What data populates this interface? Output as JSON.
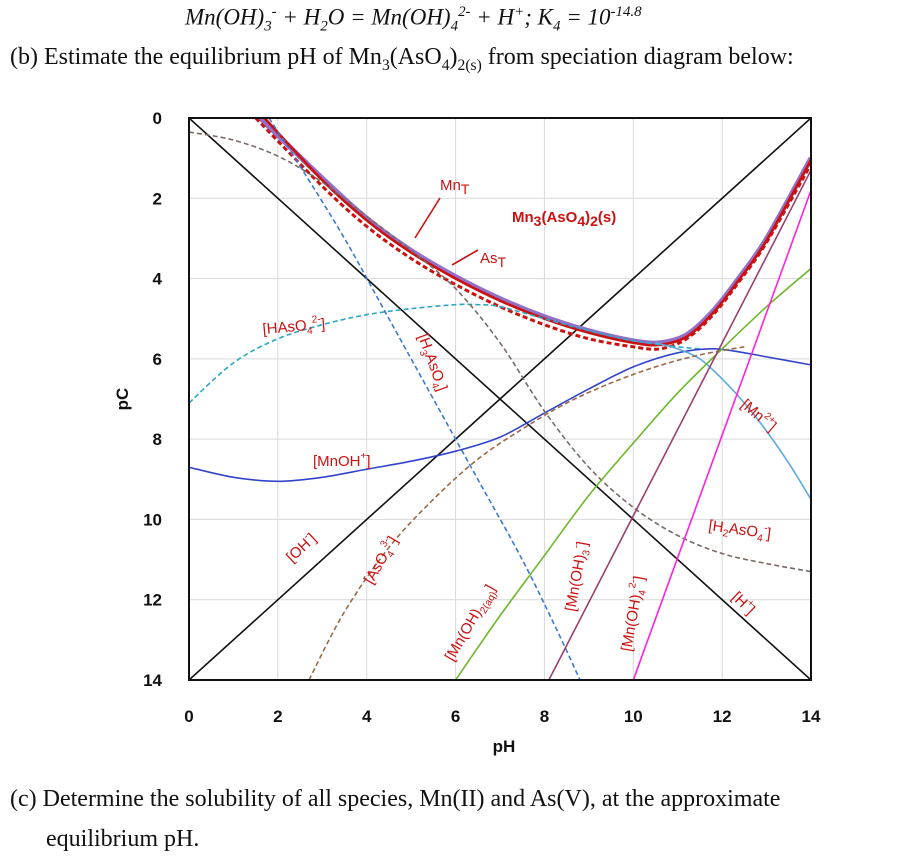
{
  "header": {
    "equation_prefix": "Mn(OH)",
    "eq_sub1": "3",
    "eq_sup1": "-",
    "equation_mid": " + H",
    "eq_sub2": "2",
    "equation_mid2": "O = Mn(OH)",
    "eq_sub3": "4",
    "eq_sup3": "2-",
    "equation_mid3": " + H",
    "eq_sup4": "+",
    "equation_mid4": "; K",
    "eq_sub5": "4",
    "equation_mid5": " = 10",
    "eq_sup5": "-14.8"
  },
  "question_b": {
    "prefix": "(b) Estimate the equilibrium pH of Mn",
    "sub1": "3",
    "mid": "(AsO",
    "sub2": "4",
    "mid2": ")",
    "sub3": "2(s)",
    "suffix": " from speciation diagram below:"
  },
  "question_c": {
    "line1": "(c) Determine the solubility of all species, Mn(II) and As(V), at the approximate",
    "line2": "equilibrium pH."
  },
  "chart_data": {
    "type": "line",
    "xlabel": "pH",
    "ylabel": "pC",
    "xlim": [
      0,
      14
    ],
    "ylim": [
      0,
      14
    ],
    "y_inverted": true,
    "x_ticks": [
      "0",
      "2",
      "4",
      "6",
      "8",
      "10",
      "12",
      "14"
    ],
    "y_ticks": [
      "0",
      "2",
      "4",
      "6",
      "8",
      "10",
      "12",
      "14"
    ],
    "grid": true,
    "series": [
      {
        "name": "[H+]",
        "color": "#111111",
        "dash": false,
        "x": [
          0,
          14
        ],
        "y": [
          0,
          14
        ]
      },
      {
        "name": "[OH-]",
        "color": "#111111",
        "dash": false,
        "x": [
          0,
          14
        ],
        "y": [
          14,
          0
        ]
      },
      {
        "name": "MnT",
        "color": "#9370c8",
        "dash": false,
        "x": [
          1.6,
          3,
          4,
          5,
          6,
          7,
          8,
          9,
          10,
          10.6,
          11.2,
          11.8,
          12.4,
          13,
          14
        ],
        "y": [
          0,
          1.5,
          2.5,
          3.3,
          3.95,
          4.5,
          4.95,
          5.3,
          5.55,
          5.6,
          5.4,
          4.8,
          3.95,
          3,
          1.0
        ]
      },
      {
        "name": "Mn3(AsO4)2(s)",
        "color": "#cc1111",
        "dash": false,
        "x": [
          1.7,
          3,
          4,
          5,
          6,
          7,
          8,
          9,
          10,
          10.6,
          11.2,
          11.8,
          12.4,
          13,
          14
        ],
        "y": [
          0,
          1.55,
          2.55,
          3.35,
          4.0,
          4.55,
          5.0,
          5.35,
          5.6,
          5.65,
          5.45,
          4.85,
          4.0,
          3.05,
          1.05
        ]
      },
      {
        "name": "AsT",
        "color": "#cc1111",
        "dash": true,
        "x": [
          1.5,
          3,
          4,
          5,
          6,
          7,
          8,
          9,
          10,
          10.6,
          11.2,
          11.8,
          12.4,
          13,
          14
        ],
        "y": [
          0,
          1.7,
          2.7,
          3.5,
          4.15,
          4.7,
          5.15,
          5.5,
          5.7,
          5.75,
          5.5,
          4.9,
          4.05,
          3.1,
          1.15
        ]
      },
      {
        "name": "[HAsO42-]",
        "color": "#2aa8c4",
        "dash": true,
        "x": [
          0,
          1,
          2,
          3,
          4,
          5,
          6,
          6.5,
          7,
          8,
          9,
          10,
          11,
          11.5
        ],
        "y": [
          7.1,
          6.1,
          5.5,
          5.15,
          4.9,
          4.75,
          4.65,
          4.65,
          4.7,
          5.0,
          5.3,
          5.55,
          5.7,
          5.75
        ]
      },
      {
        "name": "[H3AsO4]",
        "color": "#3a7ad0",
        "dash": true,
        "x": [
          1.8,
          2.5,
          3.5,
          4.5,
          5.5,
          6.5,
          7.5,
          8.3,
          8.8
        ],
        "y": [
          0,
          1.2,
          3.0,
          5.0,
          7.0,
          9.0,
          11.0,
          12.8,
          14
        ]
      },
      {
        "name": "[MnOH+]",
        "color": "#3344cc",
        "dash": false,
        "x": [
          0,
          1,
          2,
          3,
          4,
          5,
          6,
          7,
          8,
          9,
          10,
          11,
          11.8,
          12.5,
          13,
          14
        ],
        "y": [
          8.7,
          8.95,
          9.05,
          8.95,
          8.75,
          8.55,
          8.3,
          7.95,
          7.35,
          6.75,
          6.2,
          5.85,
          5.75,
          5.85,
          5.95,
          6.15
        ]
      },
      {
        "name": "[Mn2+]",
        "color": "#5aaae0",
        "dash": false,
        "x": [
          10.5,
          11,
          11.5,
          12,
          12.5,
          13,
          13.5,
          14
        ],
        "y": [
          5.6,
          5.75,
          6.0,
          6.5,
          7.1,
          7.8,
          8.6,
          9.5
        ]
      },
      {
        "name": "[H2AsO4-]",
        "color": "#7a6a66",
        "dash": true,
        "x": [
          0,
          1,
          2,
          3,
          4,
          5,
          6,
          7,
          8,
          9,
          10,
          11,
          12,
          13,
          14
        ],
        "y": [
          0.35,
          0.55,
          0.95,
          1.6,
          2.45,
          3.3,
          4.25,
          5.6,
          7.3,
          8.7,
          9.7,
          10.4,
          10.85,
          11.1,
          11.3
        ]
      },
      {
        "name": "[AsO43-]",
        "color": "#9a6a4a",
        "dash": true,
        "x": [
          2.7,
          3.5,
          4.5,
          5.5,
          6.5,
          7.5,
          8.5,
          9.5,
          10.5,
          11.5,
          12.5
        ],
        "y": [
          14,
          12.3,
          10.7,
          9.5,
          8.5,
          7.75,
          7.1,
          6.6,
          6.2,
          5.9,
          5.7
        ]
      },
      {
        "name": "[Mn(OH)2(aq)]",
        "color": "#6cb82a",
        "dash": false,
        "x": [
          6,
          7,
          8,
          9,
          10,
          11,
          12,
          13,
          14
        ],
        "y": [
          14,
          12.4,
          10.9,
          9.4,
          8.1,
          6.85,
          5.75,
          4.7,
          3.75
        ]
      },
      {
        "name": "[Mn(OH)3-]",
        "color": "#9a4070",
        "dash": false,
        "x": [
          8.1,
          14
        ],
        "y": [
          14,
          1.3
        ]
      },
      {
        "name": "[Mn(OH)42-]",
        "color": "#ff22dd",
        "dash": false,
        "x": [
          10,
          14
        ],
        "y": [
          14,
          1.8
        ]
      }
    ],
    "annotations": [
      {
        "text": "Mn",
        "sub": "T",
        "color": "#cc1111"
      },
      {
        "text": "Mn",
        "sub": "3",
        "text2": "(AsO",
        "sub2": "4",
        "text3": ")",
        "sub3": "2",
        "text4": "(s)",
        "color": "#cc1111"
      },
      {
        "text": "As",
        "sub": "T",
        "color": "#cc1111"
      },
      {
        "text": "[HAsO",
        "sub": "4",
        "sup": "2-",
        "text2": "]",
        "color": "#cc1111"
      },
      {
        "text": "[H",
        "sub": "3",
        "text2": "AsO",
        "sub2": "4",
        "text3": "]",
        "color": "#cc1111"
      },
      {
        "text": "[MnOH",
        "sup": "+",
        "text2": "]",
        "color": "#cc1111"
      },
      {
        "text": "[OH",
        "sup": "-",
        "text2": "]",
        "color": "#cc1111"
      },
      {
        "text": "[AsO",
        "sub": "4",
        "sup": "3-",
        "text2": "]",
        "color": "#cc1111"
      },
      {
        "text": "[Mn(OH)",
        "sub": "2(aq)",
        "text2": "]",
        "color": "#cc1111"
      },
      {
        "text": "[Mn(OH)",
        "sub": "3",
        "sup": "-",
        "text2": "]",
        "color": "#cc1111"
      },
      {
        "text": "[Mn(OH)",
        "sub": "4",
        "sup": "2-",
        "text2": "]",
        "color": "#cc1111"
      },
      {
        "text": "[H",
        "sub": "2",
        "text2": "AsO",
        "sub2": "4",
        "sup2": "-",
        "text3": "]",
        "color": "#cc1111"
      },
      {
        "text": "[H",
        "sup": "+",
        "text2": "]",
        "color": "#cc1111"
      },
      {
        "text": "[Mn",
        "sup": "2+",
        "text2": "]",
        "color": "#cc1111"
      }
    ]
  }
}
